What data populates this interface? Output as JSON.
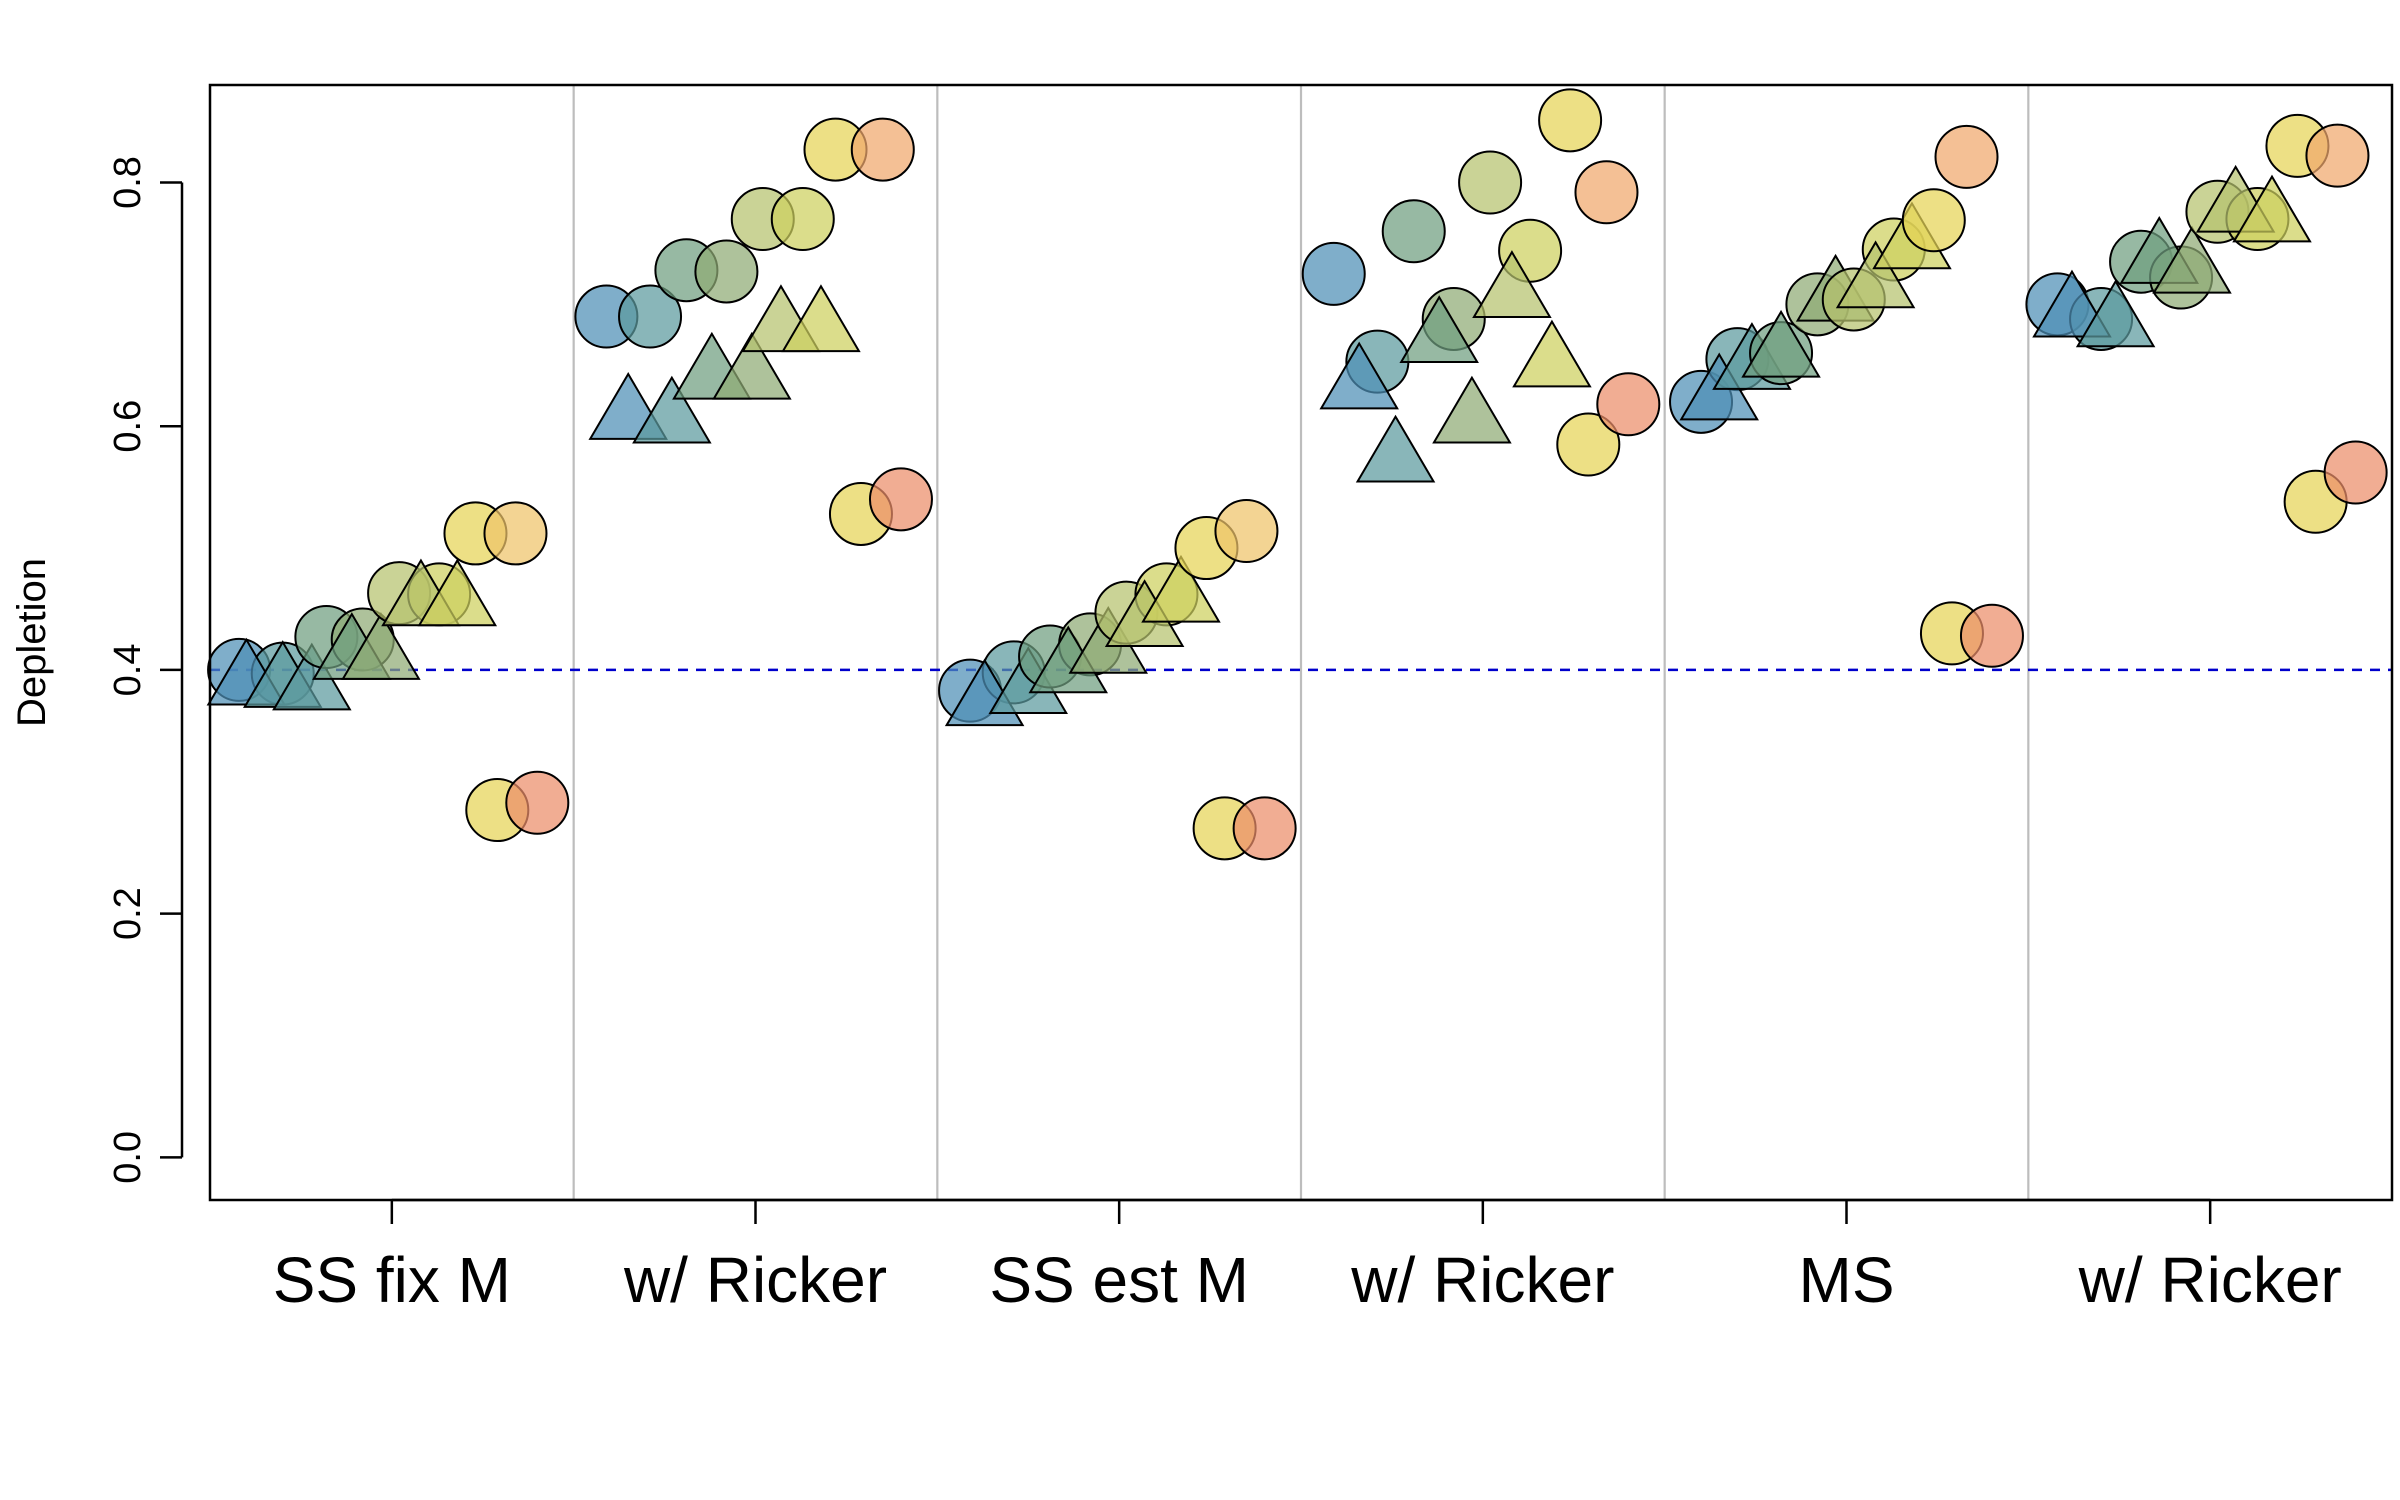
{
  "chart_data": {
    "type": "scatter",
    "title": "",
    "xlabel": "",
    "ylabel": "Depletion",
    "ylim": [
      -0.035,
      0.88
    ],
    "y_ticks": [
      "0.0",
      "0.2",
      "0.4",
      "0.6",
      "0.8"
    ],
    "y_tick_values": [
      0.0,
      0.2,
      0.4,
      0.6,
      0.8
    ],
    "reference_line": {
      "y": 0.4,
      "style": "dashed",
      "color": "#0000cc"
    },
    "grid": false,
    "panel_dividers": true,
    "categories": [
      "SS fix M",
      "w/ Ricker",
      "SS est M",
      "w/ Ricker",
      "MS",
      "w/ Ricker"
    ],
    "palette": [
      "#4e8fb5",
      "#5c9a9e",
      "#6f9e7f",
      "#8fab74",
      "#b5c26e",
      "#cdd05e",
      "#e6d456",
      "#eec46a",
      "#f0a86c",
      "#ec8e6a"
    ],
    "points": [
      {
        "g": 0,
        "o": -0.42,
        "y": 0.4,
        "s": "circle",
        "c": 0
      },
      {
        "g": 0,
        "o": -0.3,
        "y": 0.397,
        "s": "circle",
        "c": 1
      },
      {
        "g": 0,
        "o": -0.4,
        "y": 0.392,
        "s": "triangle",
        "c": 0
      },
      {
        "g": 0,
        "o": -0.3,
        "y": 0.39,
        "s": "triangle",
        "c": 1
      },
      {
        "g": 0,
        "o": -0.22,
        "y": 0.388,
        "s": "triangle",
        "c": 1
      },
      {
        "g": 0,
        "o": -0.18,
        "y": 0.427,
        "s": "circle",
        "c": 2
      },
      {
        "g": 0,
        "o": -0.08,
        "y": 0.425,
        "s": "circle",
        "c": 3
      },
      {
        "g": 0,
        "o": -0.11,
        "y": 0.413,
        "s": "triangle",
        "c": 2
      },
      {
        "g": 0,
        "o": -0.03,
        "y": 0.413,
        "s": "triangle",
        "c": 3
      },
      {
        "g": 0,
        "o": 0.02,
        "y": 0.463,
        "s": "circle",
        "c": 4
      },
      {
        "g": 0,
        "o": 0.13,
        "y": 0.462,
        "s": "circle",
        "c": 5
      },
      {
        "g": 0,
        "o": 0.08,
        "y": 0.457,
        "s": "triangle",
        "c": 4
      },
      {
        "g": 0,
        "o": 0.18,
        "y": 0.457,
        "s": "triangle",
        "c": 5
      },
      {
        "g": 0,
        "o": 0.23,
        "y": 0.512,
        "s": "circle",
        "c": 6
      },
      {
        "g": 0,
        "o": 0.34,
        "y": 0.512,
        "s": "circle",
        "c": 7
      },
      {
        "g": 0,
        "o": 0.29,
        "y": 0.285,
        "s": "circle",
        "c": 6
      },
      {
        "g": 0,
        "o": 0.4,
        "y": 0.291,
        "s": "circle",
        "c": 9
      },
      {
        "g": 1,
        "o": -0.41,
        "y": 0.69,
        "s": "circle",
        "c": 0
      },
      {
        "g": 1,
        "o": -0.29,
        "y": 0.69,
        "s": "circle",
        "c": 1
      },
      {
        "g": 1,
        "o": -0.35,
        "y": 0.61,
        "s": "triangle",
        "c": 0
      },
      {
        "g": 1,
        "o": -0.23,
        "y": 0.607,
        "s": "triangle",
        "c": 1
      },
      {
        "g": 1,
        "o": -0.19,
        "y": 0.728,
        "s": "circle",
        "c": 2
      },
      {
        "g": 1,
        "o": -0.08,
        "y": 0.727,
        "s": "circle",
        "c": 3
      },
      {
        "g": 1,
        "o": -0.12,
        "y": 0.643,
        "s": "triangle",
        "c": 2
      },
      {
        "g": 1,
        "o": -0.01,
        "y": 0.643,
        "s": "triangle",
        "c": 3
      },
      {
        "g": 1,
        "o": 0.02,
        "y": 0.77,
        "s": "circle",
        "c": 4
      },
      {
        "g": 1,
        "o": 0.13,
        "y": 0.77,
        "s": "circle",
        "c": 5
      },
      {
        "g": 1,
        "o": 0.07,
        "y": 0.682,
        "s": "triangle",
        "c": 4
      },
      {
        "g": 1,
        "o": 0.18,
        "y": 0.682,
        "s": "triangle",
        "c": 5
      },
      {
        "g": 1,
        "o": 0.22,
        "y": 0.827,
        "s": "circle",
        "c": 6
      },
      {
        "g": 1,
        "o": 0.35,
        "y": 0.827,
        "s": "circle",
        "c": 8
      },
      {
        "g": 1,
        "o": 0.29,
        "y": 0.528,
        "s": "circle",
        "c": 6
      },
      {
        "g": 1,
        "o": 0.4,
        "y": 0.54,
        "s": "circle",
        "c": 9
      },
      {
        "g": 2,
        "o": -0.41,
        "y": 0.383,
        "s": "circle",
        "c": 0
      },
      {
        "g": 2,
        "o": -0.29,
        "y": 0.398,
        "s": "circle",
        "c": 1
      },
      {
        "g": 2,
        "o": -0.37,
        "y": 0.375,
        "s": "triangle",
        "c": 0
      },
      {
        "g": 2,
        "o": -0.25,
        "y": 0.385,
        "s": "triangle",
        "c": 1
      },
      {
        "g": 2,
        "o": -0.19,
        "y": 0.411,
        "s": "circle",
        "c": 2
      },
      {
        "g": 2,
        "o": -0.08,
        "y": 0.421,
        "s": "circle",
        "c": 3
      },
      {
        "g": 2,
        "o": -0.14,
        "y": 0.402,
        "s": "triangle",
        "c": 2
      },
      {
        "g": 2,
        "o": -0.03,
        "y": 0.418,
        "s": "triangle",
        "c": 3
      },
      {
        "g": 2,
        "o": 0.02,
        "y": 0.447,
        "s": "circle",
        "c": 4
      },
      {
        "g": 2,
        "o": 0.13,
        "y": 0.462,
        "s": "circle",
        "c": 5
      },
      {
        "g": 2,
        "o": 0.07,
        "y": 0.44,
        "s": "triangle",
        "c": 4
      },
      {
        "g": 2,
        "o": 0.17,
        "y": 0.46,
        "s": "triangle",
        "c": 5
      },
      {
        "g": 2,
        "o": 0.24,
        "y": 0.5,
        "s": "circle",
        "c": 6
      },
      {
        "g": 2,
        "o": 0.35,
        "y": 0.514,
        "s": "circle",
        "c": 7
      },
      {
        "g": 2,
        "o": 0.29,
        "y": 0.27,
        "s": "circle",
        "c": 6
      },
      {
        "g": 2,
        "o": 0.4,
        "y": 0.27,
        "s": "circle",
        "c": 9
      },
      {
        "g": 3,
        "o": -0.41,
        "y": 0.725,
        "s": "circle",
        "c": 0
      },
      {
        "g": 3,
        "o": -0.29,
        "y": 0.653,
        "s": "circle",
        "c": 1
      },
      {
        "g": 3,
        "o": -0.34,
        "y": 0.635,
        "s": "triangle",
        "c": 0
      },
      {
        "g": 3,
        "o": -0.24,
        "y": 0.575,
        "s": "triangle",
        "c": 1
      },
      {
        "g": 3,
        "o": -0.19,
        "y": 0.76,
        "s": "circle",
        "c": 2
      },
      {
        "g": 3,
        "o": -0.08,
        "y": 0.688,
        "s": "circle",
        "c": 3
      },
      {
        "g": 3,
        "o": -0.12,
        "y": 0.673,
        "s": "triangle",
        "c": 2
      },
      {
        "g": 3,
        "o": -0.03,
        "y": 0.607,
        "s": "triangle",
        "c": 3
      },
      {
        "g": 3,
        "o": 0.02,
        "y": 0.8,
        "s": "circle",
        "c": 4
      },
      {
        "g": 3,
        "o": 0.13,
        "y": 0.744,
        "s": "circle",
        "c": 5
      },
      {
        "g": 3,
        "o": 0.08,
        "y": 0.71,
        "s": "triangle",
        "c": 4
      },
      {
        "g": 3,
        "o": 0.19,
        "y": 0.653,
        "s": "triangle",
        "c": 5
      },
      {
        "g": 3,
        "o": 0.24,
        "y": 0.851,
        "s": "circle",
        "c": 6
      },
      {
        "g": 3,
        "o": 0.34,
        "y": 0.792,
        "s": "circle",
        "c": 8
      },
      {
        "g": 3,
        "o": 0.29,
        "y": 0.585,
        "s": "circle",
        "c": 6
      },
      {
        "g": 3,
        "o": 0.4,
        "y": 0.618,
        "s": "circle",
        "c": 9
      },
      {
        "g": 4,
        "o": -0.4,
        "y": 0.62,
        "s": "circle",
        "c": 0
      },
      {
        "g": 4,
        "o": -0.3,
        "y": 0.655,
        "s": "circle",
        "c": 1
      },
      {
        "g": 4,
        "o": -0.35,
        "y": 0.626,
        "s": "triangle",
        "c": 0
      },
      {
        "g": 4,
        "o": -0.26,
        "y": 0.651,
        "s": "triangle",
        "c": 1
      },
      {
        "g": 4,
        "o": -0.18,
        "y": 0.66,
        "s": "circle",
        "c": 2
      },
      {
        "g": 4,
        "o": -0.08,
        "y": 0.7,
        "s": "circle",
        "c": 3
      },
      {
        "g": 4,
        "o": -0.18,
        "y": 0.661,
        "s": "triangle",
        "c": 2
      },
      {
        "g": 4,
        "o": -0.03,
        "y": 0.707,
        "s": "triangle",
        "c": 3
      },
      {
        "g": 4,
        "o": 0.02,
        "y": 0.704,
        "s": "circle",
        "c": 4
      },
      {
        "g": 4,
        "o": 0.13,
        "y": 0.745,
        "s": "circle",
        "c": 5
      },
      {
        "g": 4,
        "o": 0.08,
        "y": 0.718,
        "s": "triangle",
        "c": 4
      },
      {
        "g": 4,
        "o": 0.18,
        "y": 0.75,
        "s": "triangle",
        "c": 5
      },
      {
        "g": 4,
        "o": 0.24,
        "y": 0.769,
        "s": "circle",
        "c": 6
      },
      {
        "g": 4,
        "o": 0.33,
        "y": 0.821,
        "s": "circle",
        "c": 8
      },
      {
        "g": 4,
        "o": 0.29,
        "y": 0.43,
        "s": "circle",
        "c": 6
      },
      {
        "g": 4,
        "o": 0.4,
        "y": 0.428,
        "s": "circle",
        "c": 9
      },
      {
        "g": 5,
        "o": -0.42,
        "y": 0.7,
        "s": "circle",
        "c": 0
      },
      {
        "g": 5,
        "o": -0.3,
        "y": 0.688,
        "s": "circle",
        "c": 1
      },
      {
        "g": 5,
        "o": -0.38,
        "y": 0.694,
        "s": "triangle",
        "c": 0
      },
      {
        "g": 5,
        "o": -0.26,
        "y": 0.686,
        "s": "triangle",
        "c": 1
      },
      {
        "g": 5,
        "o": -0.19,
        "y": 0.735,
        "s": "circle",
        "c": 2
      },
      {
        "g": 5,
        "o": -0.08,
        "y": 0.722,
        "s": "circle",
        "c": 3
      },
      {
        "g": 5,
        "o": -0.14,
        "y": 0.738,
        "s": "triangle",
        "c": 2
      },
      {
        "g": 5,
        "o": -0.05,
        "y": 0.73,
        "s": "triangle",
        "c": 3
      },
      {
        "g": 5,
        "o": 0.02,
        "y": 0.776,
        "s": "circle",
        "c": 4
      },
      {
        "g": 5,
        "o": 0.13,
        "y": 0.77,
        "s": "circle",
        "c": 5
      },
      {
        "g": 5,
        "o": 0.07,
        "y": 0.78,
        "s": "triangle",
        "c": 4
      },
      {
        "g": 5,
        "o": 0.17,
        "y": 0.772,
        "s": "triangle",
        "c": 5
      },
      {
        "g": 5,
        "o": 0.24,
        "y": 0.83,
        "s": "circle",
        "c": 6
      },
      {
        "g": 5,
        "o": 0.35,
        "y": 0.822,
        "s": "circle",
        "c": 8
      },
      {
        "g": 5,
        "o": 0.29,
        "y": 0.538,
        "s": "circle",
        "c": 6
      },
      {
        "g": 5,
        "o": 0.4,
        "y": 0.562,
        "s": "circle",
        "c": 9
      }
    ]
  }
}
